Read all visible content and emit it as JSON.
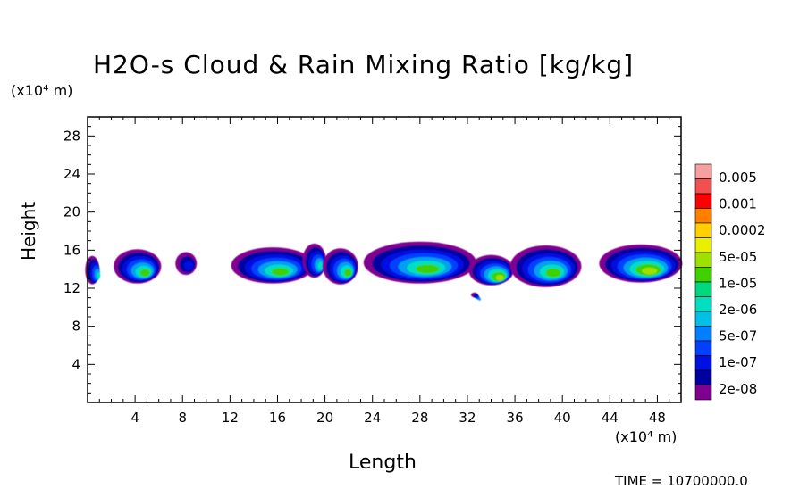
{
  "chart_data": {
    "type": "heatmap",
    "title": "H2O-s Cloud & Rain Mixing Ratio [kg/kg]",
    "xlabel": "Length",
    "ylabel": "Height",
    "x_unit": "(x10⁴ m)",
    "y_unit": "(x10⁴ m)",
    "xlim": [
      0,
      50
    ],
    "ylim": [
      0,
      30
    ],
    "x_ticks": [
      4,
      8,
      12,
      16,
      20,
      24,
      28,
      32,
      36,
      40,
      44,
      48
    ],
    "y_ticks": [
      4,
      8,
      12,
      16,
      20,
      24,
      28
    ],
    "colorbar": {
      "labels": [
        "0.005",
        "0.001",
        "0.0002",
        "5e-05",
        "1e-05",
        "2e-06",
        "5e-07",
        "1e-07",
        "2e-08"
      ],
      "colors": [
        "#f7a0a0",
        "#f05050",
        "#ff0000",
        "#ff8000",
        "#ffd000",
        "#e8f000",
        "#a0e000",
        "#40d000",
        "#00d880",
        "#00e0c0",
        "#00c0e8",
        "#0080ff",
        "#0040ff",
        "#0010e0",
        "#0000a0",
        "#800090"
      ]
    },
    "cloud_cells": [
      {
        "x": 0.4,
        "y": 13.9,
        "peak": "2e-06"
      },
      {
        "x": 4.2,
        "y": 14.3,
        "peak": "1e-05"
      },
      {
        "x": 8.3,
        "y": 14.6,
        "peak": "1e-07"
      },
      {
        "x": 15.6,
        "y": 14.4,
        "peak": "1e-05"
      },
      {
        "x": 19.1,
        "y": 14.9,
        "peak": "2e-06"
      },
      {
        "x": 21.3,
        "y": 14.3,
        "peak": "1e-05"
      },
      {
        "x": 28.0,
        "y": 14.7,
        "peak": "1e-05"
      },
      {
        "x": 32.6,
        "y": 11.3,
        "peak": "5e-07"
      },
      {
        "x": 34.0,
        "y": 13.9,
        "peak": "5e-05"
      },
      {
        "x": 38.6,
        "y": 14.3,
        "peak": "1e-05"
      },
      {
        "x": 46.6,
        "y": 14.6,
        "peak": "5e-05"
      }
    ],
    "footer": "TIME = 10700000.0"
  }
}
